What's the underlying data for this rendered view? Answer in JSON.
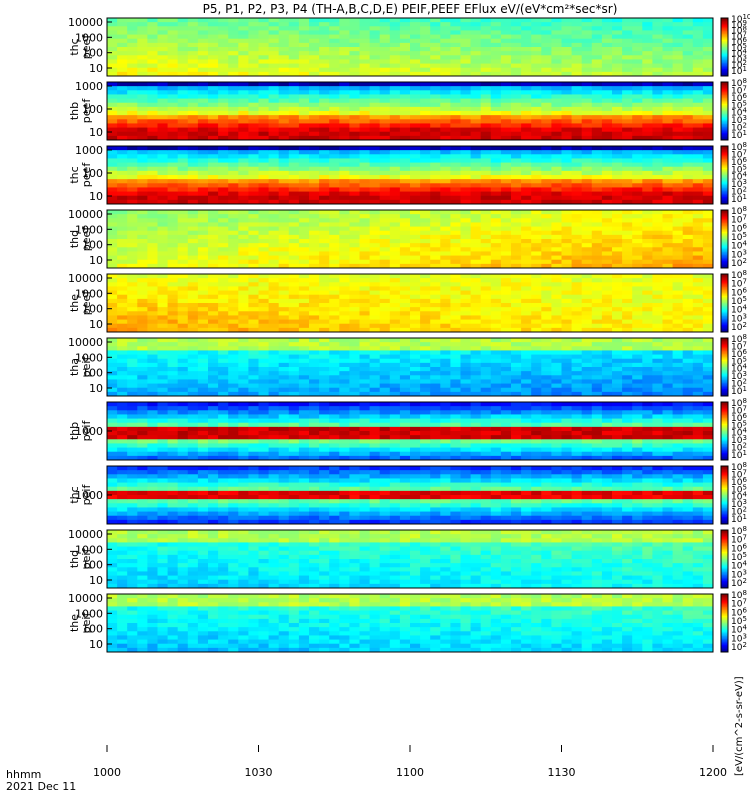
{
  "figure": {
    "title": "P5, P1, P2, P3, P4 (TH-A,B,C,D,E) PEIF,PEEF EFlux eV/(eV*cm²*sec*sr)",
    "footer_label": "hhmm",
    "footer_date": "2021 Dec 11",
    "colorbar_unit": "[eV/(cm^2-s-sr-eV)]"
  },
  "chart_data": {
    "type": "heatmap",
    "x_axis": {
      "label": "hhmm",
      "date": "2021 Dec 11",
      "range": [
        "10:00",
        "12:00"
      ],
      "ticks": [
        "1000",
        "1030",
        "1100",
        "1130",
        "1200"
      ]
    },
    "panels": [
      {
        "name": "thc peef",
        "probe": "thc",
        "product": "peef",
        "y_scale": "log",
        "y_ticks": [
          "10",
          "100",
          "1000",
          "10000"
        ],
        "colorbar_ticks": [
          "10^1",
          "10^2",
          "10^3",
          "10^4",
          "10^5",
          "10^6",
          "10^7",
          "10^8",
          "10^9",
          "10^10"
        ]
      },
      {
        "name": "thb peef",
        "probe": "thb",
        "product": "peef",
        "y_scale": "log",
        "y_ticks": [
          "10",
          "100",
          "1000"
        ],
        "colorbar_ticks": [
          "10^1",
          "10^2",
          "10^3",
          "10^4",
          "10^5",
          "10^6",
          "10^7",
          "10^8"
        ]
      },
      {
        "name": "thc peef",
        "probe": "thc",
        "product": "peef",
        "y_scale": "log",
        "y_ticks": [
          "10",
          "100",
          "1000"
        ],
        "colorbar_ticks": [
          "10^1",
          "10^2",
          "10^3",
          "10^4",
          "10^5",
          "10^6",
          "10^7",
          "10^8"
        ]
      },
      {
        "name": "thd peef",
        "probe": "thd",
        "product": "peef",
        "y_scale": "log",
        "y_ticks": [
          "10",
          "100",
          "1000",
          "10000"
        ],
        "colorbar_ticks": [
          "10^2",
          "10^3",
          "10^4",
          "10^5",
          "10^6",
          "10^7",
          "10^8"
        ]
      },
      {
        "name": "the peef",
        "probe": "the",
        "product": "peef",
        "y_scale": "log",
        "y_ticks": [
          "10",
          "100",
          "1000",
          "10000"
        ],
        "colorbar_ticks": [
          "10^2",
          "10^3",
          "10^4",
          "10^5",
          "10^6",
          "10^7",
          "10^8"
        ]
      },
      {
        "name": "tha peif",
        "probe": "tha",
        "product": "peif",
        "y_scale": "log",
        "y_ticks": [
          "10",
          "100",
          "1000",
          "10000"
        ],
        "colorbar_ticks": [
          "10^1",
          "10^2",
          "10^3",
          "10^4",
          "10^5",
          "10^6",
          "10^7",
          "10^8"
        ]
      },
      {
        "name": "thb peif",
        "probe": "thb",
        "product": "peif",
        "y_scale": "log",
        "y_ticks": [
          "1000"
        ],
        "colorbar_ticks": [
          "10^1",
          "10^2",
          "10^3",
          "10^4",
          "10^5",
          "10^6",
          "10^7",
          "10^8"
        ]
      },
      {
        "name": "thc peif",
        "probe": "thc",
        "product": "peif",
        "y_scale": "log",
        "y_ticks": [
          "1000"
        ],
        "colorbar_ticks": [
          "10^1",
          "10^2",
          "10^3",
          "10^4",
          "10^5",
          "10^6",
          "10^7",
          "10^8"
        ]
      },
      {
        "name": "thd peif",
        "probe": "thd",
        "product": "peif",
        "y_scale": "log",
        "y_ticks": [
          "10",
          "100",
          "1000",
          "10000"
        ],
        "colorbar_ticks": [
          "10^2",
          "10^3",
          "10^4",
          "10^5",
          "10^6",
          "10^7",
          "10^8"
        ]
      },
      {
        "name": "the peif",
        "probe": "the",
        "product": "peif",
        "y_scale": "log",
        "y_ticks": [
          "10",
          "100",
          "1000",
          "10000"
        ],
        "colorbar_ticks": [
          "10^2",
          "10^3",
          "10^4",
          "10^5",
          "10^6",
          "10^7",
          "10^8"
        ]
      }
    ],
    "colorbar_unit": "[eV/(cm^2-s-sr-eV)]"
  }
}
